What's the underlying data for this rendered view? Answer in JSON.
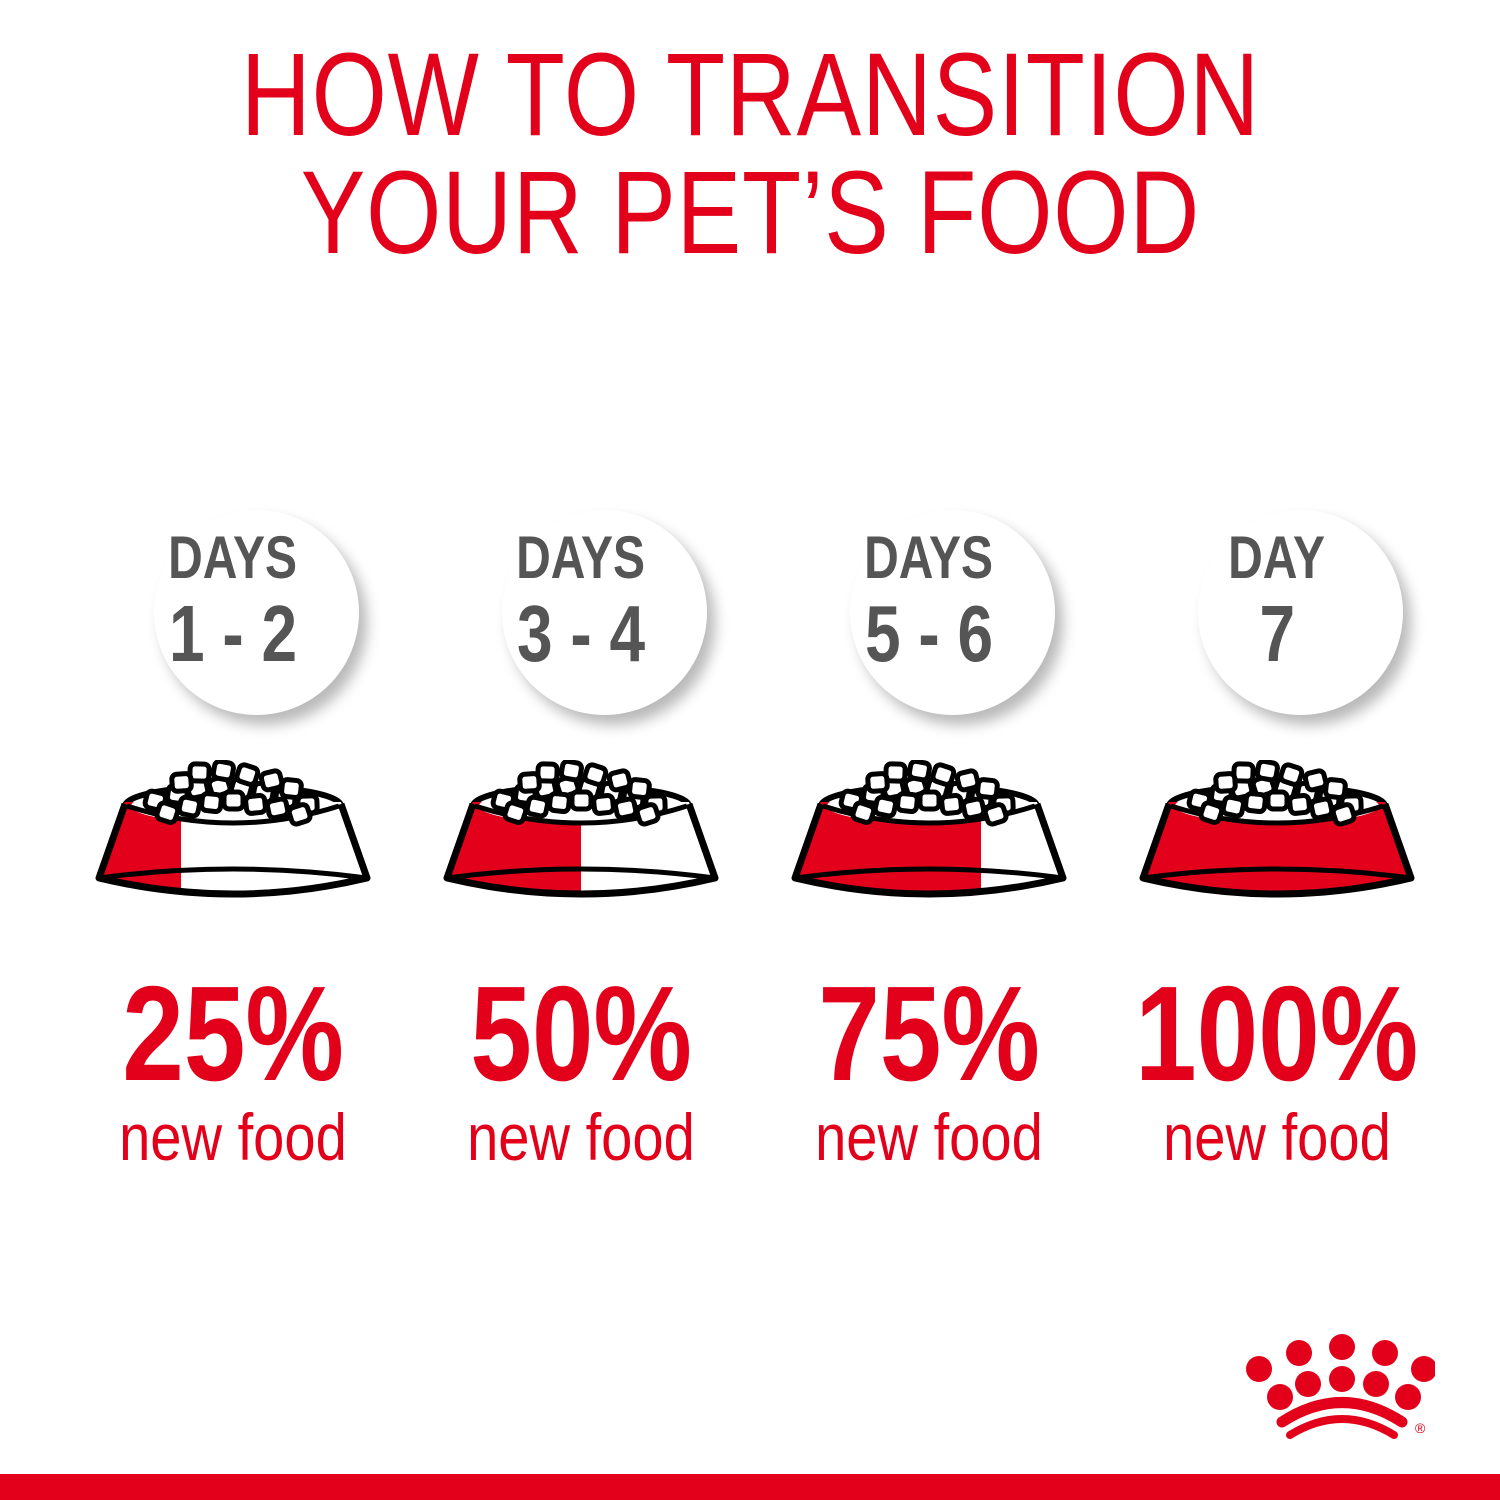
{
  "title": {
    "line1": "HOW TO TRANSITION",
    "line2": "YOUR PET’S FOOD"
  },
  "colors": {
    "brand_red": "#e2001a",
    "day_text": "#555555",
    "outline": "#000000"
  },
  "steps": [
    {
      "label": "DAYS",
      "days": "1 - 2",
      "percent": "25%",
      "caption": "new food",
      "new_food_fraction": 0.25
    },
    {
      "label": "DAYS",
      "days": "3 - 4",
      "percent": "50%",
      "caption": "new food",
      "new_food_fraction": 0.5
    },
    {
      "label": "DAYS",
      "days": "5 - 6",
      "percent": "75%",
      "caption": "new food",
      "new_food_fraction": 0.75
    },
    {
      "label": "DAY",
      "days": "7",
      "percent": "100%",
      "caption": "new food",
      "new_food_fraction": 1.0
    }
  ],
  "logo": {
    "icon": "crown-logo-icon",
    "mark": "®"
  }
}
